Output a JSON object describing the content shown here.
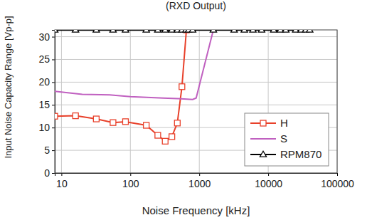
{
  "chart_data": {
    "type": "line",
    "title": "(RXD Output)",
    "x_label": "Noise  Frequency [kHz]",
    "y_label": "Input Noise Capacity Range [Vp-p]",
    "log": "x",
    "grid": true,
    "legend": "lower right",
    "xlim": [
      8,
      100000
    ],
    "xticks": [
      10,
      100,
      1000,
      10000,
      100000
    ],
    "ylim": [
      0,
      31.5
    ],
    "yticks": [
      0,
      5,
      10,
      15,
      20,
      25,
      30
    ],
    "series": [
      {
        "name": "H",
        "color": "#e8402a",
        "marker": "square",
        "line_style": "solid",
        "x": [
          8,
          16,
          32,
          56,
          85,
          170,
          250,
          320,
          400,
          480,
          560,
          650
        ],
        "values": [
          12.5,
          12.6,
          11.9,
          11.1,
          11.3,
          10.5,
          8.3,
          7.0,
          8.0,
          11.0,
          19.0,
          31.5
        ]
      },
      {
        "name": "S",
        "color": "#c060c0",
        "marker": "none",
        "line_style": "solid",
        "x": [
          8,
          20,
          50,
          100,
          300,
          600,
          800,
          900,
          1600
        ],
        "values": [
          18.0,
          17.3,
          17.2,
          16.8,
          16.5,
          16.3,
          16.2,
          16.5,
          31.5
        ]
      },
      {
        "name": "RPM870",
        "color": "#000000",
        "marker": "triangle",
        "line_style": "solid",
        "x": [
          8,
          16,
          32,
          56,
          85,
          170,
          250,
          320,
          400,
          480,
          560,
          640,
          700,
          800,
          1600,
          3200,
          4500,
          6000,
          8000,
          12000,
          15000,
          18000,
          25000,
          30000,
          35000,
          40000
        ],
        "values": [
          31.5,
          31.5,
          31.5,
          31.5,
          31.5,
          31.5,
          31.5,
          31.5,
          31.5,
          31.5,
          31.5,
          31.5,
          31.5,
          31.5,
          31.5,
          31.5,
          31.5,
          31.5,
          31.5,
          31.5,
          31.5,
          31.5,
          31.5,
          31.5,
          31.5,
          31.5
        ]
      }
    ]
  }
}
